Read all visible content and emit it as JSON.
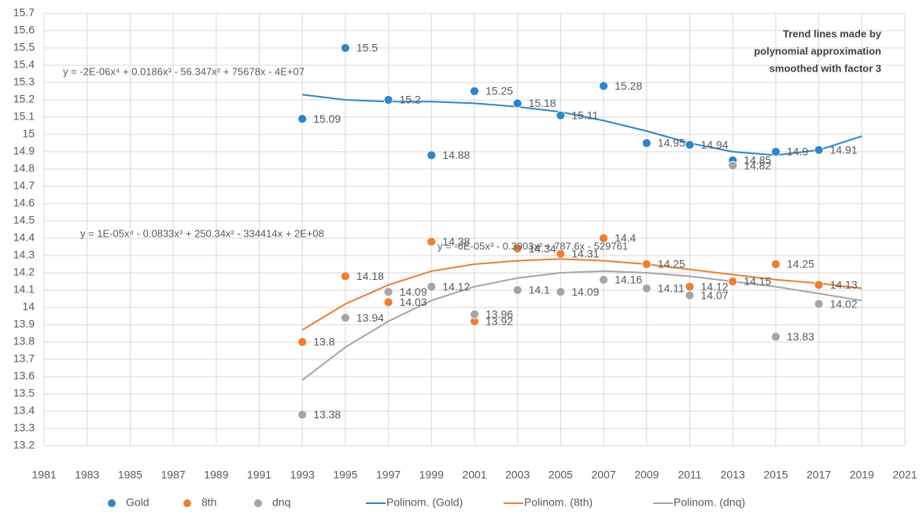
{
  "chart_data": {
    "type": "scatter",
    "title": [
      "Trend lines made by",
      "polynomial approximation",
      "smoothed with factor 3"
    ],
    "xlim": [
      1981,
      2021
    ],
    "xticks": [
      1981,
      1983,
      1985,
      1987,
      1989,
      1991,
      1993,
      1995,
      1997,
      1999,
      2001,
      2003,
      2005,
      2007,
      2009,
      2011,
      2013,
      2015,
      2017,
      2019,
      2021
    ],
    "ylim": [
      13.2,
      15.7
    ],
    "yticks": [
      13.2,
      13.3,
      13.4,
      13.5,
      13.6,
      13.7,
      13.8,
      13.9,
      14,
      14.1,
      14.2,
      14.3,
      14.4,
      14.5,
      14.6,
      14.7,
      14.8,
      14.9,
      15,
      15.1,
      15.2,
      15.3,
      15.4,
      15.5,
      15.6,
      15.7
    ],
    "grid": true,
    "legend": "bottom",
    "series": [
      {
        "name": "Gold",
        "color": "#2e86c8",
        "x": [
          1993,
          1995,
          1997,
          1999,
          2001,
          2003,
          2005,
          2007,
          2009,
          2011,
          2013,
          2015,
          2017
        ],
        "values": [
          15.09,
          15.5,
          15.2,
          14.88,
          15.25,
          15.18,
          15.11,
          15.28,
          14.95,
          14.94,
          14.85,
          14.9,
          14.91
        ]
      },
      {
        "name": "8th",
        "color": "#ed7d31",
        "x": [
          1993,
          1995,
          1997,
          1999,
          2001,
          2003,
          2005,
          2007,
          2009,
          2011,
          2013,
          2015,
          2017
        ],
        "values": [
          13.8,
          14.18,
          14.03,
          14.38,
          13.92,
          14.34,
          14.31,
          14.4,
          14.25,
          14.12,
          14.15,
          14.25,
          14.13
        ]
      },
      {
        "name": "dnq",
        "color": "#a5a5a5",
        "x": [
          1993,
          1995,
          1997,
          1999,
          2001,
          2003,
          2005,
          2007,
          2009,
          2011,
          2013,
          2015,
          2017
        ],
        "values": [
          13.38,
          13.94,
          14.09,
          14.12,
          13.96,
          14.1,
          14.09,
          14.16,
          14.11,
          14.07,
          14.82,
          13.83,
          14.02
        ]
      }
    ],
    "trendlines": [
      {
        "name": "Polinom. (Gold)",
        "color": "#2e86c8",
        "equation": "y = -2E-06x⁴ + 0.0186x³ - 56.347x² + 75678x - 4E+07",
        "x": [
          1993,
          1995,
          1997,
          1999,
          2001,
          2003,
          2005,
          2007,
          2009,
          2011,
          2013,
          2015,
          2017,
          2019
        ],
        "values": [
          15.23,
          15.2,
          15.19,
          15.19,
          15.18,
          15.16,
          15.13,
          15.08,
          15.02,
          14.95,
          14.9,
          14.88,
          14.91,
          14.99
        ]
      },
      {
        "name": "Polinom. (8th)",
        "color": "#ed7d31",
        "equation": "y = 1E-05x⁴ - 0.0833x³ + 250.34x² - 334414x + 2E+08",
        "x": [
          1993,
          1995,
          1997,
          1999,
          2001,
          2003,
          2005,
          2007,
          2009,
          2011,
          2013,
          2015,
          2017,
          2019
        ],
        "values": [
          13.87,
          14.02,
          14.13,
          14.21,
          14.25,
          14.27,
          14.28,
          14.27,
          14.25,
          14.22,
          14.19,
          14.16,
          14.14,
          14.11
        ]
      },
      {
        "name": "Polinom. (dnq)",
        "color": "#a5a5a5",
        "equation": "y = -6E-05x³ - 0.3903x² + 787.6x - 529761",
        "x": [
          1993,
          1995,
          1997,
          1999,
          2001,
          2003,
          2005,
          2007,
          2009,
          2011,
          2013,
          2015,
          2017,
          2019
        ],
        "values": [
          13.58,
          13.77,
          13.92,
          14.04,
          14.12,
          14.17,
          14.2,
          14.21,
          14.2,
          14.18,
          14.15,
          14.12,
          14.08,
          14.04
        ]
      }
    ]
  }
}
